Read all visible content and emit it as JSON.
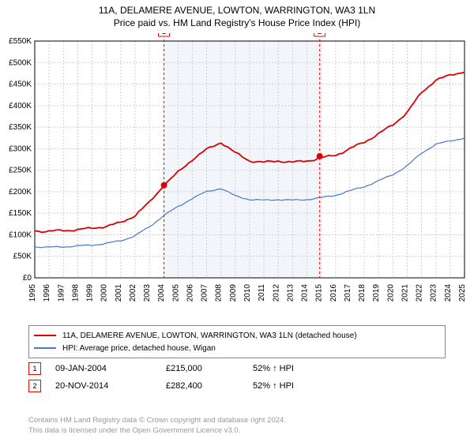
{
  "title_line1": "11A, DELAMERE AVENUE, LOWTON, WARRINGTON, WA3 1LN",
  "title_line2": "Price paid vs. HM Land Registry's House Price Index (HPI)",
  "chart": {
    "type": "line",
    "background_color": "#ffffff",
    "grid_color": "#cfcfcf",
    "axis_color": "#000000",
    "x_years": [
      1995,
      1996,
      1997,
      1998,
      1999,
      2000,
      2001,
      2002,
      2003,
      2004,
      2005,
      2006,
      2007,
      2008,
      2009,
      2010,
      2011,
      2012,
      2013,
      2014,
      2015,
      2016,
      2017,
      2018,
      2019,
      2020,
      2021,
      2022,
      2023,
      2024,
      2025
    ],
    "y_ticks": [
      0,
      50,
      100,
      150,
      200,
      250,
      300,
      350,
      400,
      450,
      500,
      550
    ],
    "y_tick_labels": [
      "£0",
      "£50K",
      "£100K",
      "£150K",
      "£200K",
      "£250K",
      "£300K",
      "£350K",
      "£400K",
      "£450K",
      "£500K",
      "£550K"
    ],
    "ylim": [
      0,
      550
    ],
    "label_fontsize": 10,
    "series": [
      {
        "name": "11A, DELAMERE AVENUE, LOWTON, WARRINGTON, WA3 1LN (detached house)",
        "color": "#d80000",
        "line_width": 1.8,
        "values_k": [
          109,
          108,
          110,
          112,
          115,
          120,
          128,
          145,
          175,
          215,
          245,
          275,
          298,
          315,
          290,
          272,
          268,
          272,
          268,
          272,
          278,
          285,
          300,
          315,
          335,
          355,
          385,
          430,
          460,
          470,
          480
        ]
      },
      {
        "name": "HPI: Average price, detached house, Wigan",
        "color": "#4a76c7",
        "line_width": 1.2,
        "values_k": [
          72,
          71,
          72,
          74,
          76,
          80,
          86,
          98,
          118,
          145,
          165,
          185,
          200,
          208,
          190,
          182,
          180,
          182,
          180,
          182,
          186,
          192,
          202,
          212,
          225,
          240,
          260,
          290,
          310,
          318,
          325
        ]
      }
    ],
    "shaded_region": {
      "x_start": 2004.02,
      "x_end": 2014.89,
      "fill": "#e6eef8"
    },
    "marker_lines": [
      {
        "x": 2004.02,
        "color": "#ff0000",
        "label": "1"
      },
      {
        "x": 2014.89,
        "color": "#ff0000",
        "label": "2"
      }
    ],
    "sale_points": [
      {
        "x": 2004.02,
        "y": 215,
        "color": "#d80000"
      },
      {
        "x": 2014.89,
        "y": 282.4,
        "color": "#d80000"
      }
    ]
  },
  "legend": [
    {
      "color": "#d80000",
      "label": "11A, DELAMERE AVENUE, LOWTON, WARRINGTON, WA3 1LN (detached house)"
    },
    {
      "color": "#4a76c7",
      "label": "HPI: Average price, detached house, Wigan"
    }
  ],
  "events": [
    {
      "marker": "1",
      "marker_color": "#ff0000",
      "date": "09-JAN-2004",
      "price": "£215,000",
      "hpi": "52% ↑ HPI"
    },
    {
      "marker": "2",
      "marker_color": "#ff0000",
      "date": "20-NOV-2014",
      "price": "£282,400",
      "hpi": "52% ↑ HPI"
    }
  ],
  "footer_line1": "Contains HM Land Registry data © Crown copyright and database right 2024.",
  "footer_line2": "This data is licensed under the Open Government Licence v3.0."
}
